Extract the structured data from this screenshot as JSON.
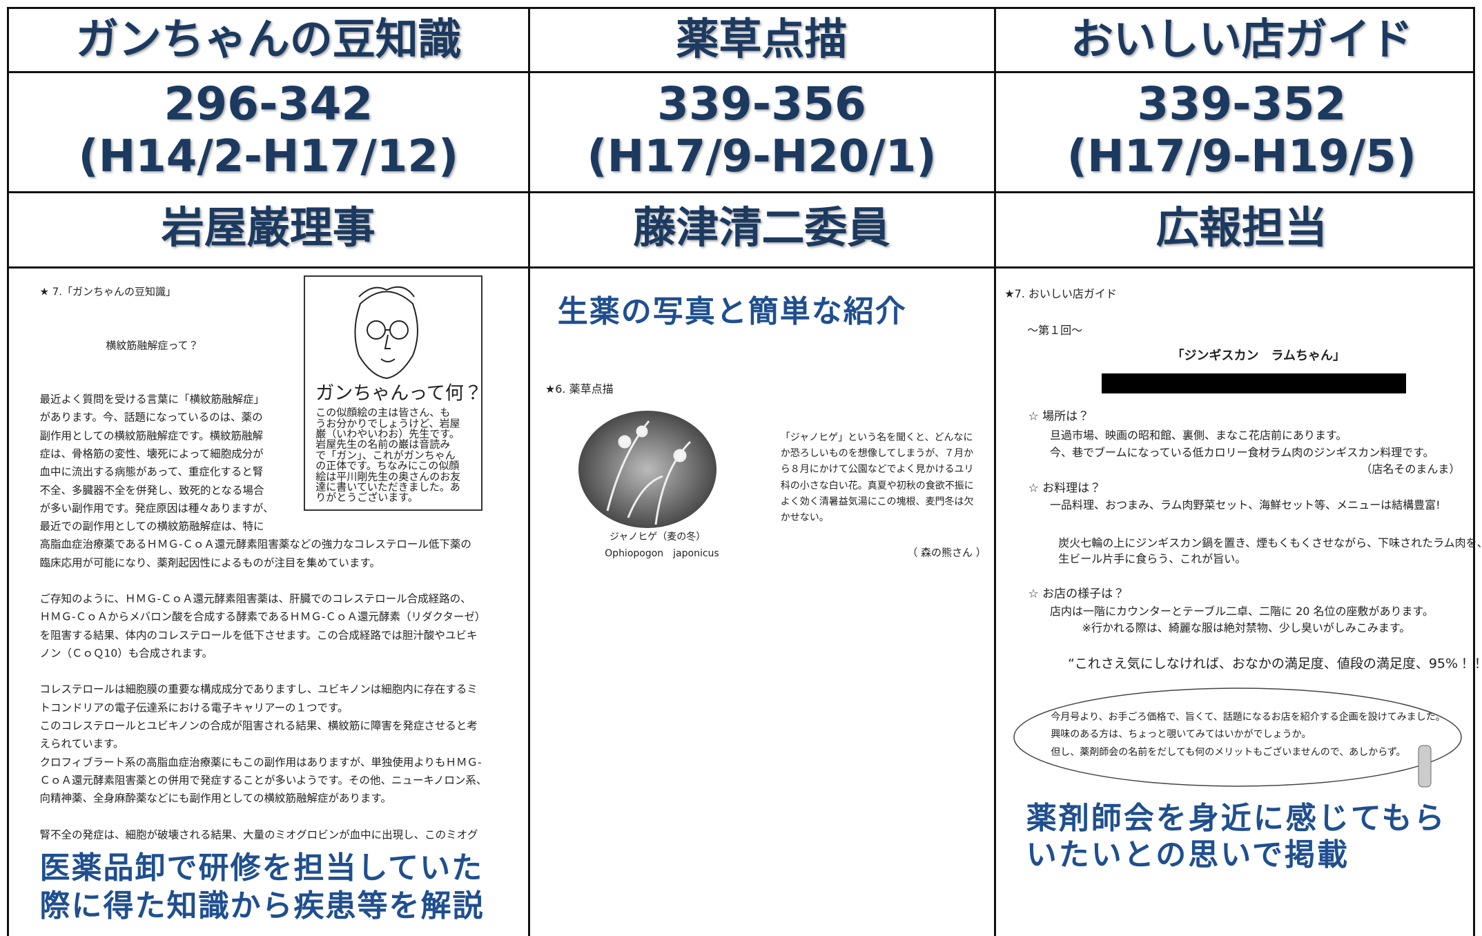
{
  "columns": [
    {
      "title": "ガンちゃんの豆知識",
      "range": "296-342",
      "period": "(H14/2-H17/12)",
      "author": "岩屋巌理事",
      "article": {
        "heading": "★ 7.「ガンちゃんの豆知識」",
        "subtitle": "横紋筋融解症って？",
        "box": {
          "title": "ガンちゃんって何？",
          "lines": [
            "この似顔絵の主は皆さん、も",
            "うお分かりでしょうけど、岩屋",
            "巌（いわやいわお）先生です。",
            "岩屋先生の名前の巌は音読み",
            "で「ガン」、これがガンちゃん",
            "の正体です。ちなみにこの似顔",
            "絵は平川剛先生の奥さんのお友",
            "達に書いていただきました。あ",
            "りがとうございます。"
          ]
        },
        "paragraphs": [
          [
            "最近よく質問を受ける言葉に「横紋筋融解症」",
            "があります。今、話題になっているのは、薬の",
            "副作用としての横紋筋融解症です。横紋筋融解",
            "症は、骨格筋の変性、壊死によって細胞成分が",
            "血中に流出する病態があって、重症化すると腎",
            "不全、多臓器不全を併発し、致死的となる場合",
            "が多い副作用です。発症原因は種々ありますが、",
            "最近での副作用としての横紋筋融解症は、特に",
            "高脂血症治療薬であるＨＭＧ-ＣｏＡ還元酵素阻害薬などの強力なコレステロール低下薬の",
            "臨床応用が可能になり、薬剤起因性によるものが注目を集めています。"
          ],
          [
            "ご存知のように、ＨＭＧ-ＣｏＡ還元酵素阻害薬は、肝臓でのコレステロール合成経路の、",
            "ＨＭＧ-ＣｏＡからメバロン酸を合成する酵素であるＨＭＧ-ＣｏＡ還元酵素（リダクターゼ）",
            "を阻害する結果、体内のコレステロールを低下させます。この合成経路では胆汁酸やユビキ",
            "ノン（ＣｏＱ10）も合成されます。"
          ],
          [
            "コレステロールは細胞膜の重要な構成成分でありますし、ユビキノンは細胞内に存在するミ",
            "トコンドリアの電子伝達系における電子キャリアーの１つです。",
            "このコレステロールとユビキノンの合成が阻害される結果、横紋筋に障害を発症させると考",
            "えられています。",
            "クロフィブラート系の高脂血症治療薬にもこの副作用はありますが、単独使用よりもＨＭＧ-",
            "ＣｏＡ還元酵素阻害薬との併用で発症することが多いようです。その他、ニューキノロン系、",
            "向精神薬、全身麻酔薬などにも副作用としての横紋筋融解症があります。"
          ],
          [
            "腎不全の発症は、細胞が破壊される結果、大量のミオグロビンが血中に出現し、このミオグ"
          ]
        ],
        "caption": [
          "医薬品卸で研修を担当していた",
          "際に得た知識から疾患等を解説"
        ]
      }
    },
    {
      "title": "薬草点描",
      "range": "339-356",
      "period": "(H17/9-H20/1)",
      "author": "藤津清二委員",
      "article": {
        "caption": "生薬の写真と簡単な紹介",
        "heading": "★6. 薬草点描",
        "photo_caption": "ジャノヒゲ（麦の冬）",
        "latin_name": "Ophiopogon　japonicus",
        "lines": [
          "「ジャノヒゲ」という名を聞くと、どんなに",
          "か恐ろしいものを想像してしまうが、７月か",
          "ら８月にかけて公園などでよく見かけるユリ",
          "科の小さな白い花。真夏や初秋の食欲不振に",
          "よく効く清暑益気湯にこの塊根、麦門冬は欠",
          "かせない。"
        ],
        "author": "（ 森の熊さん ）"
      }
    },
    {
      "title": "おいしい店ガイド",
      "range": "339-352",
      "period": "(H17/9-H19/5)",
      "author": "広報担当",
      "article": {
        "heading": "★7. おいしい店ガイド",
        "issue": "〜第１回〜",
        "shop_name": "「ジンギスカン　ラムちゃん」",
        "sections": [
          {
            "heading": "☆ 場所は？",
            "lines": [
              "旦過市場、映画の昭和館、裏側、まなこ花店前にあります。",
              "今、巷でブームになっている低カロリー食材ラム肉のジンギスカン料理です。",
              "（店名そのまんま）"
            ]
          },
          {
            "heading": "☆ お料理は？",
            "lines": [
              "一品料理、おつまみ、ラム肉野菜セット、海鮮セット等、メニューは結構豊富!",
              "炭火七輪の上にジンギスカン鍋を置き、煙もくもくさせながら、下味されたラム肉を、",
              "生ビール片手に食らう、これが旨い。"
            ]
          },
          {
            "heading": "☆ お店の様子は？",
            "lines": [
              "店内は一階にカウンターとテーブル二卓、二階に 20 名位の座敷があります。",
              "※行かれる際は、綺麗な服は絶対禁物、少し臭いがしみこみます。"
            ]
          }
        ],
        "quote": "“これさえ気にしなければ、おなかの満足度、値段の満足度、95%！！”",
        "notice": [
          "今月号より、お手ごろ価格で、旨くて、話題になるお店を紹介する企画を設けてみました。",
          "興味のある方は、ちょっと覗いてみてはいかがでしょうか。",
          "但し、薬剤師会の名前をだしても何のメリットもございませんので、あしからず。"
        ],
        "caption": [
          "薬剤師会を身近に感じてもら",
          "いたいとの思いで掲載"
        ]
      }
    }
  ]
}
